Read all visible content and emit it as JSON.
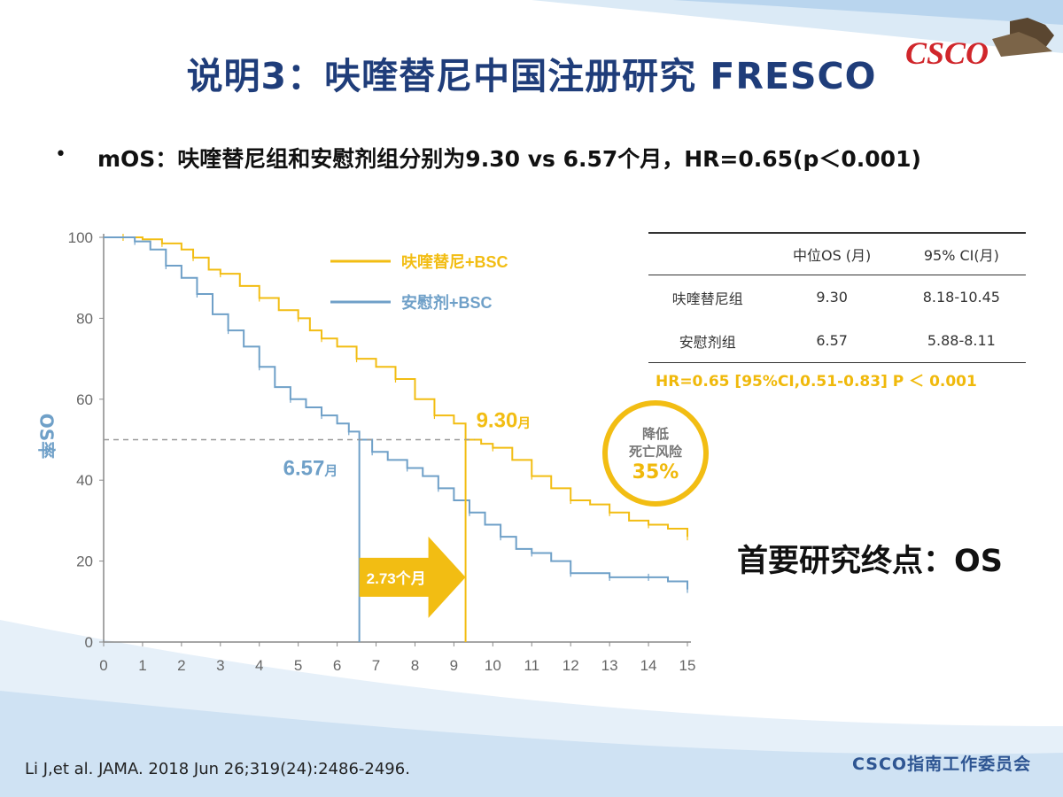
{
  "slide": {
    "title": "说明3：呋喹替尼中国注册研究  FRESCO",
    "logo_text": "CSCO",
    "bullet": "mOS：呋喹替尼组和安慰剂组分别为9.30 vs 6.57个月，HR=0.65(p＜0.001)",
    "bullet_marker": "•",
    "endpoint": "首要研究终点：OS",
    "citation": "Li J,et al. JAMA. 2018 Jun 26;319(24):2486-2496.",
    "committee": "CSCO指南工作委员会",
    "colors": {
      "title": "#1f3d7a",
      "fruquintinib": "#f2bd13",
      "placebo": "#6fa0c8",
      "committee": "#2e5592"
    }
  },
  "ci_table": {
    "headers": [
      "",
      "中位OS (月)",
      "95% CI(月)"
    ],
    "rows": [
      [
        "呋喹替尼组",
        "9.30",
        "8.18-10.45"
      ],
      [
        "安慰剂组",
        "6.57",
        "5.88-8.11"
      ]
    ],
    "hr_text": "HR=0.65 [95%CI,0.51-0.83] P ＜ 0.001"
  },
  "risk_badge": {
    "line1": "降低",
    "line2": "死亡风险",
    "value": "35%"
  },
  "chart_data": {
    "type": "line",
    "ylabel": "OS率",
    "xlim": [
      0,
      15
    ],
    "ylim": [
      0,
      100
    ],
    "x_ticks": [
      "0",
      "1",
      "2",
      "3",
      "4",
      "5",
      "6",
      "7",
      "8",
      "9",
      "10",
      "11",
      "12",
      "13",
      "14",
      "15"
    ],
    "y_ticks": [
      "0",
      "20",
      "40",
      "60",
      "80",
      "100"
    ],
    "series": [
      {
        "name": "呋喹替尼+BSC",
        "color": "#f2bd13",
        "points": [
          [
            0,
            100
          ],
          [
            0.5,
            100
          ],
          [
            1,
            99.5
          ],
          [
            1.5,
            98.5
          ],
          [
            2,
            97
          ],
          [
            2.3,
            95
          ],
          [
            2.7,
            92
          ],
          [
            3,
            91
          ],
          [
            3.5,
            88
          ],
          [
            4,
            85
          ],
          [
            4.5,
            82
          ],
          [
            5,
            80
          ],
          [
            5.3,
            77
          ],
          [
            5.6,
            75
          ],
          [
            6,
            73
          ],
          [
            6.5,
            70
          ],
          [
            7,
            68
          ],
          [
            7.5,
            65
          ],
          [
            8,
            60
          ],
          [
            8.5,
            56
          ],
          [
            9,
            54
          ],
          [
            9.3,
            50
          ],
          [
            9.7,
            49
          ],
          [
            10,
            48
          ],
          [
            10.5,
            45
          ],
          [
            11,
            41
          ],
          [
            11.5,
            38
          ],
          [
            12,
            35
          ],
          [
            12.5,
            34
          ],
          [
            13,
            32
          ],
          [
            13.5,
            30
          ],
          [
            14,
            29
          ],
          [
            14.5,
            28
          ],
          [
            15,
            26
          ]
        ]
      },
      {
        "name": "安慰剂+BSC",
        "color": "#6fa0c8",
        "points": [
          [
            0,
            100
          ],
          [
            0.8,
            99
          ],
          [
            1.2,
            97
          ],
          [
            1.6,
            93
          ],
          [
            2,
            90
          ],
          [
            2.4,
            86
          ],
          [
            2.8,
            81
          ],
          [
            3.2,
            77
          ],
          [
            3.6,
            73
          ],
          [
            4,
            68
          ],
          [
            4.4,
            63
          ],
          [
            4.8,
            60
          ],
          [
            5.2,
            58
          ],
          [
            5.6,
            56
          ],
          [
            6,
            54
          ],
          [
            6.3,
            52
          ],
          [
            6.57,
            50
          ],
          [
            6.9,
            47
          ],
          [
            7.3,
            45
          ],
          [
            7.8,
            43
          ],
          [
            8.2,
            41
          ],
          [
            8.6,
            38
          ],
          [
            9,
            35
          ],
          [
            9.4,
            32
          ],
          [
            9.8,
            29
          ],
          [
            10.2,
            26
          ],
          [
            10.6,
            23
          ],
          [
            11,
            22
          ],
          [
            11.5,
            20
          ],
          [
            12,
            17
          ],
          [
            12.5,
            17
          ],
          [
            13,
            16
          ],
          [
            13.5,
            16
          ],
          [
            14,
            16
          ],
          [
            14.5,
            15
          ],
          [
            15,
            13
          ]
        ]
      }
    ],
    "annotations": {
      "median_line_y": 50,
      "fruq_median": {
        "x": 9.3,
        "label": "9.30",
        "unit": "月"
      },
      "placebo_median": {
        "x": 6.57,
        "label": "6.57",
        "unit": "月"
      },
      "difference_label": "2.73个月"
    }
  }
}
